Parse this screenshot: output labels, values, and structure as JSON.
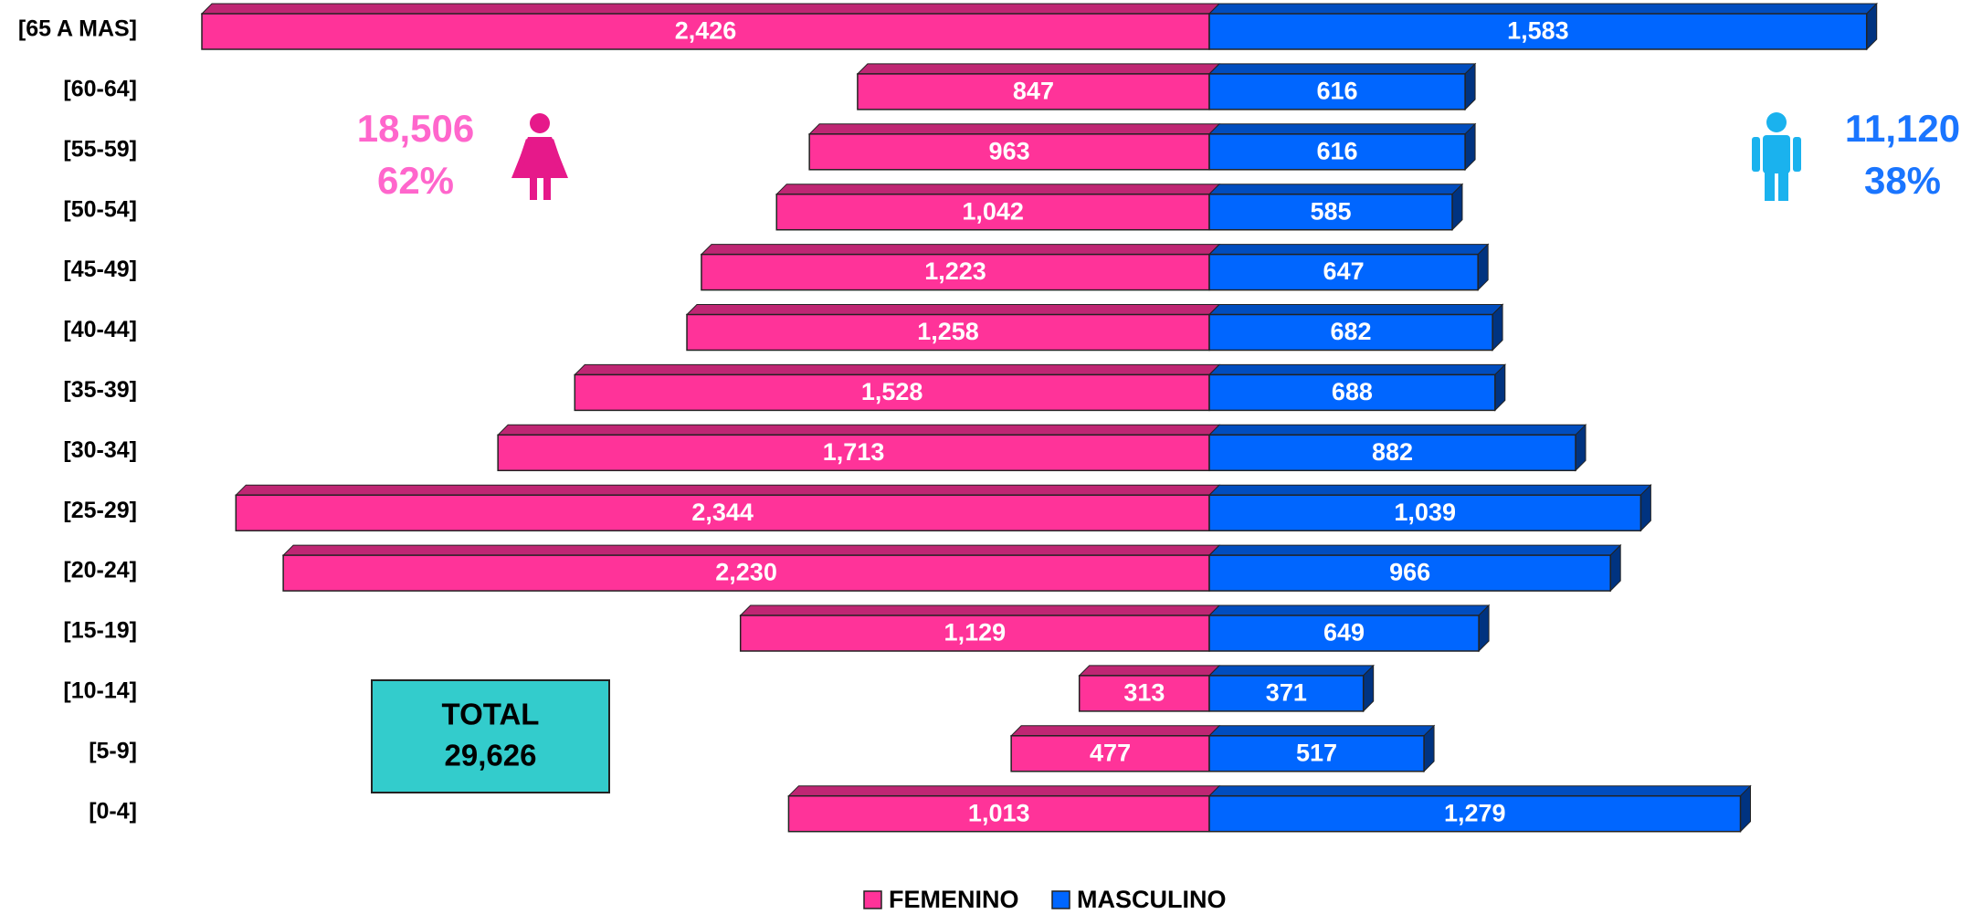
{
  "chart_data": {
    "type": "pyramid",
    "categories": [
      "[65 A MAS]",
      "[60-64]",
      "[55-59]",
      "[50-54]",
      "[45-49]",
      "[40-44]",
      "[35-39]",
      "[30-34]",
      "[25-29]",
      "[20-24]",
      "[15-19]",
      "[10-14]",
      "[5-9]",
      "[0-4]"
    ],
    "series": [
      {
        "name": "FEMENINO",
        "color": "#ff3399",
        "values": [
          2426,
          847,
          963,
          1042,
          1223,
          1258,
          1528,
          1713,
          2344,
          2230,
          1129,
          313,
          477,
          1013
        ],
        "value_labels": [
          "2,426",
          "847",
          "963",
          "1,042",
          "1,223",
          "1,258",
          "1,528",
          "1,713",
          "2,344",
          "2,230",
          "1,129",
          "313",
          "477",
          "1,013"
        ]
      },
      {
        "name": "MASCULINO",
        "color": "#0066ff",
        "values": [
          1583,
          616,
          616,
          585,
          647,
          682,
          688,
          882,
          1039,
          966,
          649,
          371,
          517,
          1279
        ],
        "value_labels": [
          "1,583",
          "616",
          "616",
          "585",
          "647",
          "682",
          "688",
          "882",
          "1,039",
          "966",
          "649",
          "371",
          "517",
          "1,279"
        ]
      }
    ],
    "legend": "bottom",
    "annotations": {
      "female_total": "18,506",
      "female_share": "62%",
      "male_total": "11,120",
      "male_share": "38%",
      "total_title": "TOTAL",
      "total_value": "29,626"
    }
  }
}
